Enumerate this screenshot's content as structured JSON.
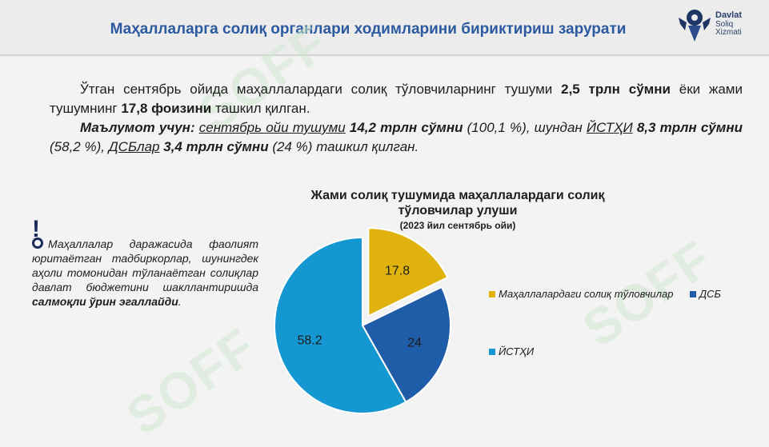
{
  "header": {
    "title": "Маҳаллаларга солиқ органлари ходимларини бириктириш зарурати",
    "logo": {
      "line1": "Davlat",
      "line2": "Soliq",
      "line3": "Xizmati"
    }
  },
  "watermark": {
    "text": "SOFF"
  },
  "paragraph": {
    "p1_a": "Ўтган сентябрь ойида маҳаллалардаги солиқ тўловчиларнинг тушуми ",
    "p1_b": "2,5 трлн сўмни",
    "p1_c": " ёки жами тушумнинг ",
    "p1_d": "17,8 фоизини",
    "p1_e": " ташкил қилган.",
    "p2_label": "Маълумот учун:",
    "p2_a": "сентябрь ойи тушуми",
    "p2_b": "14,2 трлн сўмни",
    "p2_c": " (100,1 %), шундан ",
    "p2_d": "ЙСТҲИ",
    "p2_e": "8,3 трлн сўмни",
    "p2_f": " (58,2 %), ",
    "p2_g": "ДСБлар",
    "p2_h": "3,4 трлн сўмни",
    "p2_i": " (24 %) ташкил қилган."
  },
  "note": {
    "mark": "!",
    "text_a": "Маҳаллалар даражасида фаолият юритаётган тадбиркорлар, шунингдек аҳоли томонидан тўланаётган солиқлар давлат бюджетини шакллантиришда ",
    "text_b": "салмоқли ўрин эгаллайди",
    "text_c": "."
  },
  "chart_data": {
    "type": "pie",
    "title": "Жами солиқ тушумида маҳаллалардаги солиқ тўловчилар улуши",
    "subtitle": "(2023 йил сентябрь ойи)",
    "slices": [
      {
        "label": "Маҳаллалардаги солиқ тўловчилар",
        "value": 17.8,
        "value_label": "17.8",
        "color": "#e0b20d",
        "exploded": true
      },
      {
        "label": "ДСБ",
        "value": 24,
        "value_label": "24",
        "color": "#1f5da8",
        "exploded": false
      },
      {
        "label": "ЙСТҲИ",
        "value": 58.2,
        "value_label": "58.2",
        "color": "#1597d2",
        "exploded": false
      }
    ],
    "legend_position": "right"
  }
}
